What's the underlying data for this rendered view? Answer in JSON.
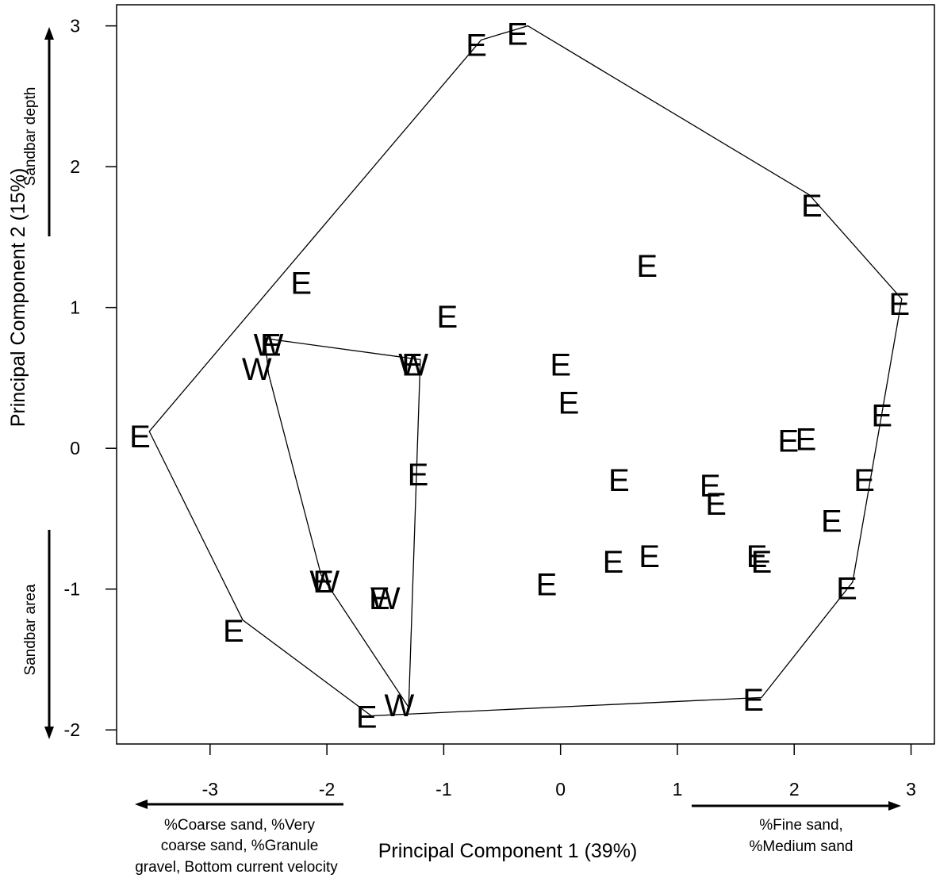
{
  "chart_data": {
    "type": "scatter",
    "xlabel": "Principal Component 1 (39%)",
    "ylabel": "Principal Component 2 (15%)",
    "xlim": [
      -3.8,
      3.2
    ],
    "ylim": [
      -2.1,
      3.15
    ],
    "x_ticks": [
      -3,
      -2,
      -1,
      0,
      1,
      2,
      3
    ],
    "y_ticks": [
      -2,
      -1,
      0,
      1,
      2,
      3
    ],
    "grid": false,
    "legend": "none",
    "series": [
      {
        "name": "E",
        "points": [
          {
            "x": -0.72,
            "y": 2.86
          },
          {
            "x": -0.37,
            "y": 2.94
          },
          {
            "x": 2.15,
            "y": 1.72
          },
          {
            "x": 0.74,
            "y": 1.29
          },
          {
            "x": 2.9,
            "y": 1.02
          },
          {
            "x": -2.22,
            "y": 1.17
          },
          {
            "x": -0.97,
            "y": 0.93
          },
          {
            "x": -2.48,
            "y": 0.73
          },
          {
            "x": -1.27,
            "y": 0.59
          },
          {
            "x": 0.0,
            "y": 0.59
          },
          {
            "x": 0.07,
            "y": 0.32
          },
          {
            "x": 2.75,
            "y": 0.23
          },
          {
            "x": 1.95,
            "y": 0.05
          },
          {
            "x": 2.1,
            "y": 0.06
          },
          {
            "x": -3.6,
            "y": 0.08
          },
          {
            "x": -1.22,
            "y": -0.19
          },
          {
            "x": 0.5,
            "y": -0.23
          },
          {
            "x": 2.6,
            "y": -0.23
          },
          {
            "x": 1.28,
            "y": -0.27
          },
          {
            "x": 1.33,
            "y": -0.4
          },
          {
            "x": 2.32,
            "y": -0.52
          },
          {
            "x": 1.68,
            "y": -0.77
          },
          {
            "x": 1.72,
            "y": -0.81
          },
          {
            "x": 0.76,
            "y": -0.77
          },
          {
            "x": 0.45,
            "y": -0.81
          },
          {
            "x": -0.12,
            "y": -0.97
          },
          {
            "x": -2.03,
            "y": -0.95
          },
          {
            "x": -1.55,
            "y": -1.07
          },
          {
            "x": 2.45,
            "y": -1.0
          },
          {
            "x": -2.8,
            "y": -1.3
          },
          {
            "x": 1.65,
            "y": -1.79
          },
          {
            "x": -1.66,
            "y": -1.91
          }
        ]
      },
      {
        "name": "W",
        "points": [
          {
            "x": -2.5,
            "y": 0.73
          },
          {
            "x": -2.6,
            "y": 0.56
          },
          {
            "x": -1.26,
            "y": 0.59
          },
          {
            "x": -2.02,
            "y": -0.95
          },
          {
            "x": -1.5,
            "y": -1.07
          },
          {
            "x": -1.38,
            "y": -1.83
          }
        ]
      }
    ],
    "hulls": [
      {
        "group": "E",
        "vertices": [
          [
            -3.52,
            0.12
          ],
          [
            -0.68,
            2.9
          ],
          [
            -0.28,
            3.0
          ],
          [
            2.13,
            1.8
          ],
          [
            2.92,
            1.06
          ],
          [
            2.5,
            -0.95
          ],
          [
            1.72,
            -1.77
          ],
          [
            -1.62,
            -1.9
          ],
          [
            -2.72,
            -1.22
          ]
        ]
      },
      {
        "group": "W",
        "vertices": [
          [
            -2.53,
            0.78
          ],
          [
            -1.2,
            0.63
          ],
          [
            -1.3,
            -1.84
          ],
          [
            -2.05,
            -0.9
          ],
          [
            -2.5,
            0.53
          ]
        ]
      }
    ],
    "annotations": {
      "y_positive": "Sandbar depth",
      "y_negative": "Sandbar area",
      "x_negative": [
        "%Coarse sand, %Very",
        "coarse sand, %Granule",
        "gravel, Bottom current velocity"
      ],
      "x_positive": [
        "%Fine sand,",
        "%Medium sand"
      ]
    }
  }
}
